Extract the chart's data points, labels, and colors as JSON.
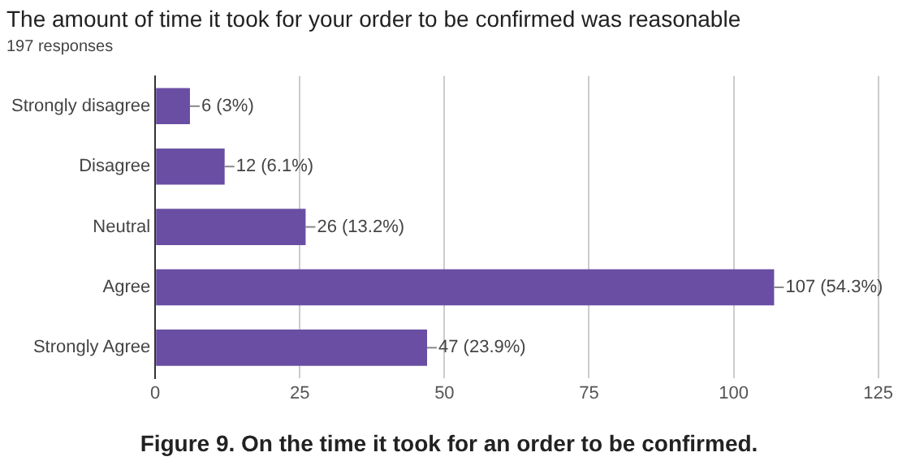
{
  "chart_data": {
    "type": "bar",
    "orientation": "horizontal",
    "title": "The amount of time it took for your order to be confirmed was reasonable",
    "subtitle": "197 responses",
    "categories": [
      "Strongly disagree",
      "Disagree",
      "Neutral",
      "Agree",
      "Strongly Agree"
    ],
    "values": [
      6,
      12,
      26,
      107,
      47
    ],
    "color": "#6a4ea3",
    "value_labels": [
      "6 (3%)",
      "12 (6.1%)",
      "26 (13.2%)",
      "107 (54.3%)",
      "47 (23.9%)"
    ],
    "xlim": [
      0,
      125
    ],
    "xticks": [
      0,
      25,
      50,
      75,
      100,
      125
    ],
    "grid": "x",
    "legend": false,
    "annotations": [
      "Figure 9. On the time it took for an order to be confirmed."
    ]
  }
}
